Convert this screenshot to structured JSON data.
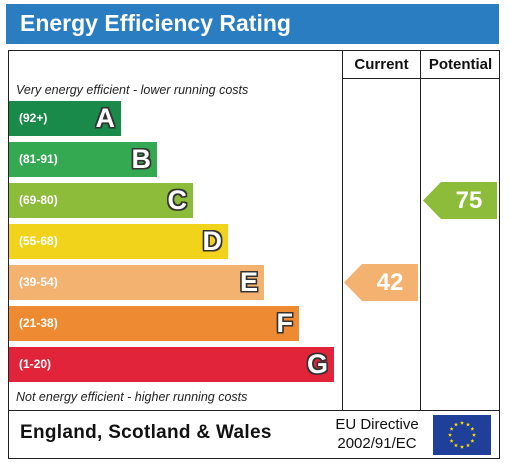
{
  "title": "Energy Efficiency Rating",
  "columns": {
    "current": "Current",
    "potential": "Potential"
  },
  "notes": {
    "top": "Very energy efficient - lower running costs",
    "bottom": "Not energy efficient - higher running costs"
  },
  "bands": [
    {
      "letter": "A",
      "range": "(92+)",
      "color": "#1a8a4a"
    },
    {
      "letter": "B",
      "range": "(81-91)",
      "color": "#35a852"
    },
    {
      "letter": "C",
      "range": "(69-80)",
      "color": "#8dbb3a"
    },
    {
      "letter": "D",
      "range": "(55-68)",
      "color": "#f2d31b"
    },
    {
      "letter": "E",
      "range": "(39-54)",
      "color": "#f4b270"
    },
    {
      "letter": "F",
      "range": "(21-38)",
      "color": "#ee8a32"
    },
    {
      "letter": "G",
      "range": "(1-20)",
      "color": "#e2243a"
    }
  ],
  "current": {
    "value": "42",
    "band": "E",
    "color": "#f4b270"
  },
  "potential": {
    "value": "75",
    "band": "C",
    "color": "#8dbb3a"
  },
  "footer": {
    "country": "England, Scotland & Wales",
    "directive_line1": "EU Directive",
    "directive_line2": "2002/91/EC",
    "flag_icon": "eu-flag-icon",
    "flag_color": "#1f3f99",
    "star_color": "#ffde00"
  }
}
